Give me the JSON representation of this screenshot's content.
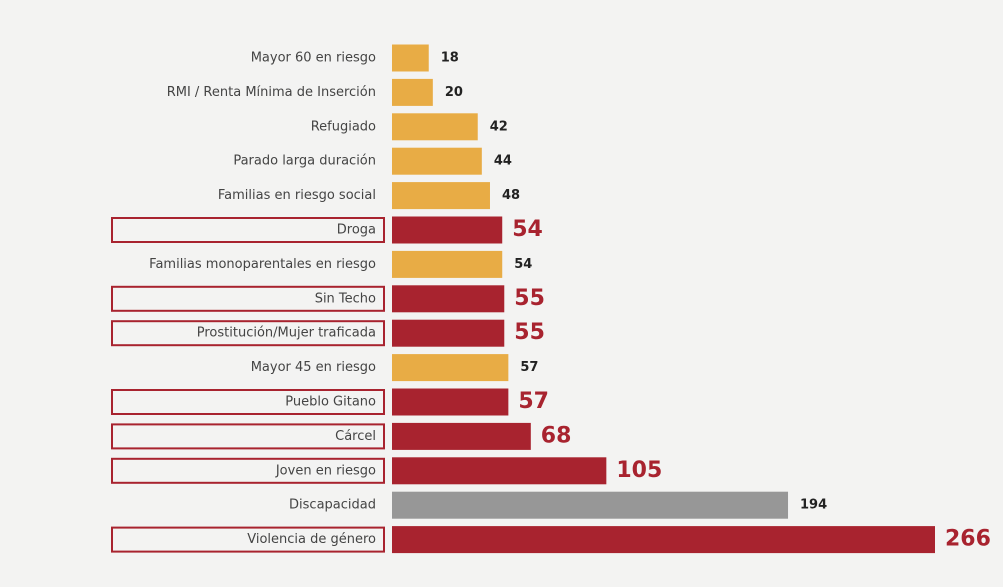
{
  "chart_data": {
    "type": "barh",
    "categories": [
      "Mayor 60 en riesgo",
      "RMI / Renta Mínima de Inserción",
      "Refugiado",
      "Parado larga duración",
      "Familias en riesgo social",
      "Droga",
      "Familias monoparentales en riesgo",
      "Sin Techo",
      "Prostitución/Mujer traficada",
      "Mayor 45 en riesgo",
      "Pueblo Gitano",
      "Cárcel",
      "Joven en riesgo",
      "Discapacidad",
      "Violencia de género"
    ],
    "values": [
      18,
      20,
      42,
      44,
      48,
      54,
      54,
      55,
      55,
      57,
      57,
      68,
      105,
      194,
      266
    ],
    "colors": [
      "#e8ac45",
      "#e8ac45",
      "#e8ac45",
      "#e8ac45",
      "#e8ac45",
      "#a8232f",
      "#e8ac45",
      "#a8232f",
      "#a8232f",
      "#e8ac45",
      "#a8232f",
      "#a8232f",
      "#a8232f",
      "#979797",
      "#a8232f"
    ],
    "highlight_color": "#a8232f"
  }
}
